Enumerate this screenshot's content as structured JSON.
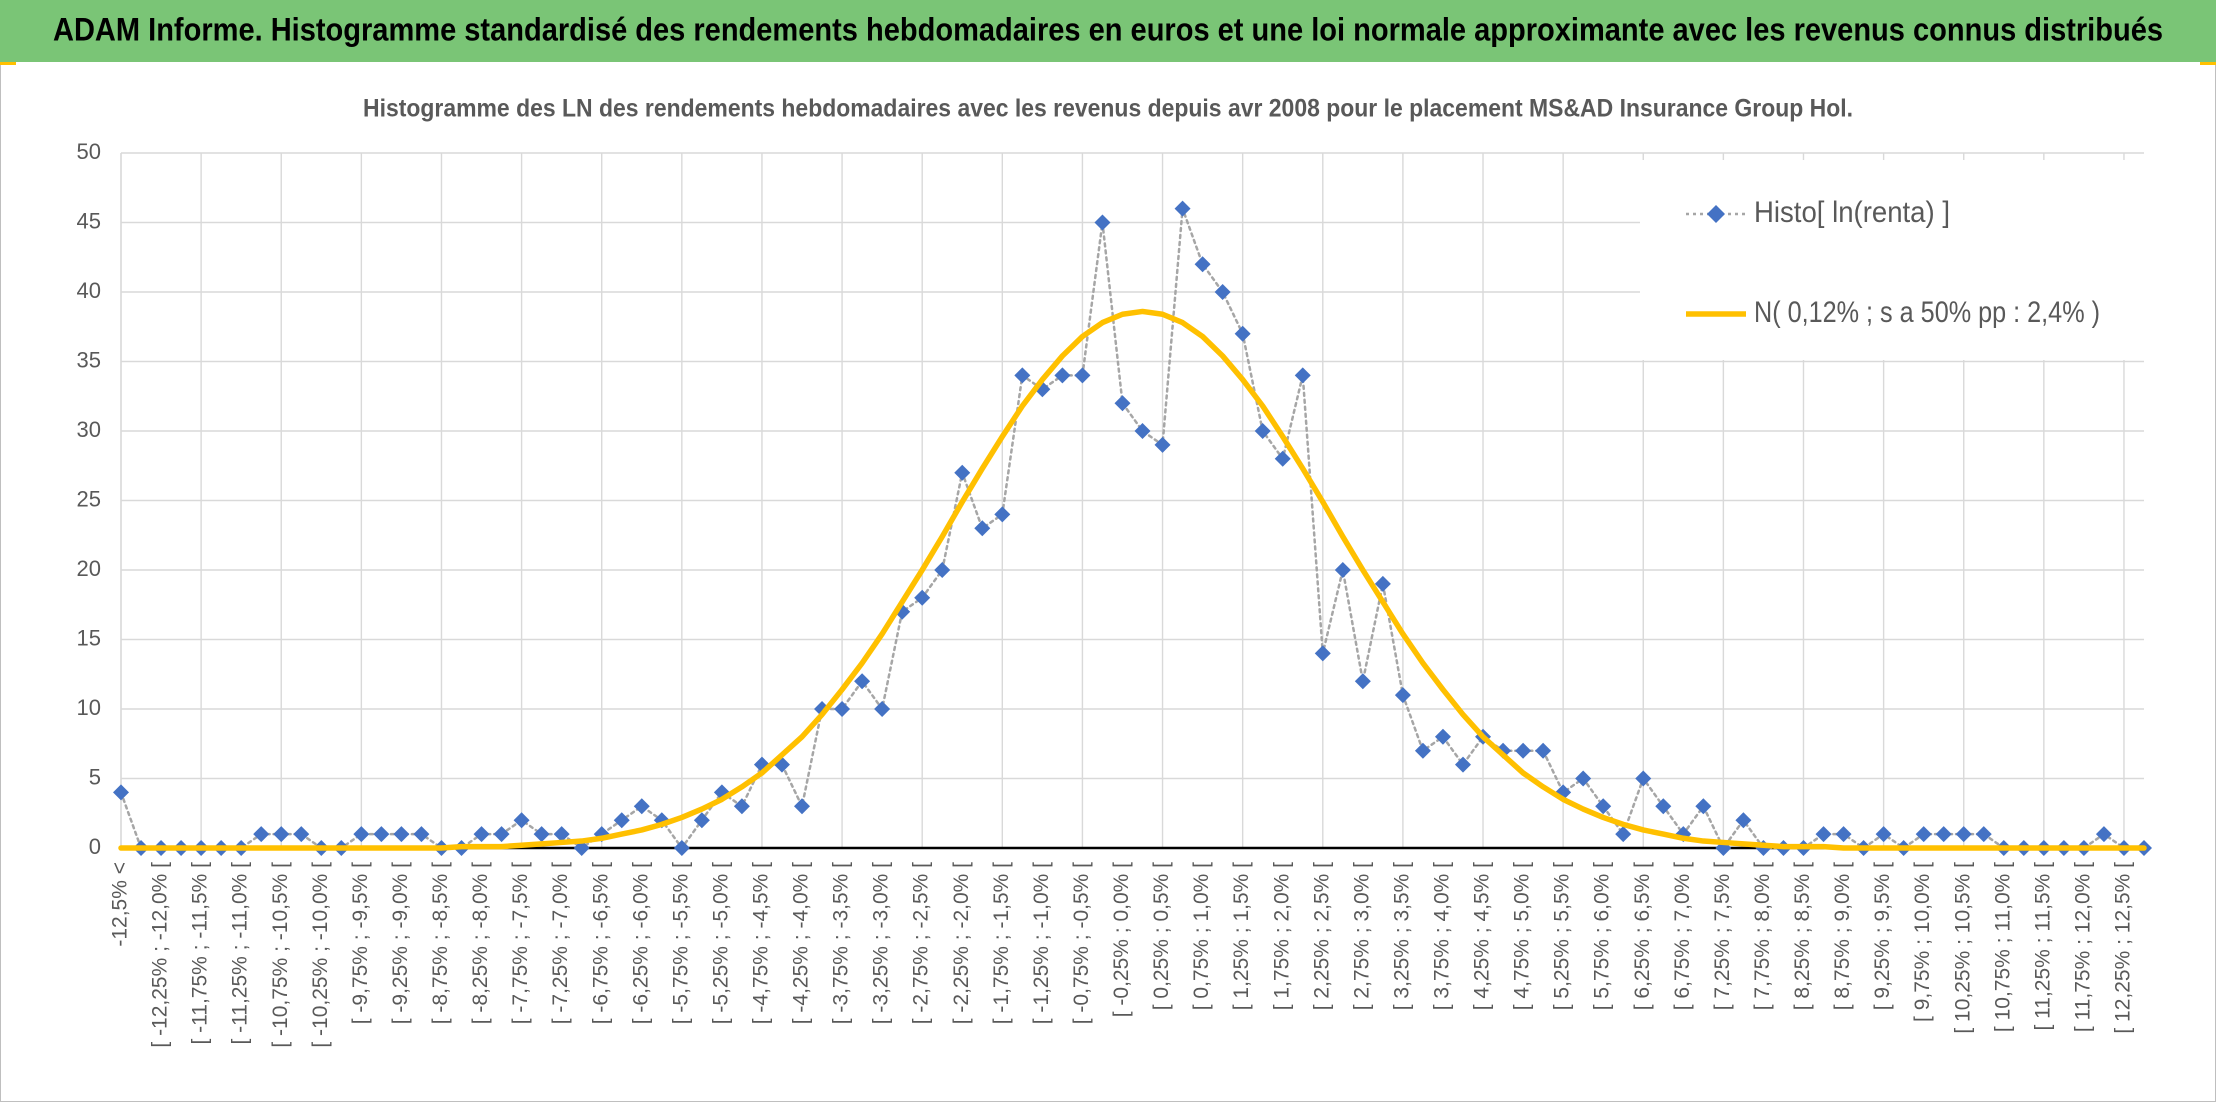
{
  "chart_data": {
    "type": "line",
    "super_title": "ADAM Informe. Histogramme standardisé des rendements hebdomadaires en euros et une loi normale approximante avec les revenus connus distribués",
    "title": "Histogramme des LN des rendements hebdomadaires avec les revenus depuis avr 2008 pour le placement MS&AD Insurance Group Hol.",
    "categories": [
      "-12,5% <",
      null,
      "[ -12,25% ; -12,0% [",
      null,
      "[ -11,75% ; -11,5% [",
      null,
      "[ -11,25% ; -11,0% [",
      null,
      "[ -10,75% ; -10,5% [",
      null,
      "[ -10,25% ; -10,0% [",
      null,
      "[ -9,75% ; -9,5% [",
      null,
      "[ -9,25% ; -9,0% [",
      null,
      "[ -8,75% ; -8,5% [",
      null,
      "[ -8,25% ; -8,0% [",
      null,
      "[ -7,75% ; -7,5% [",
      null,
      "[ -7,25% ; -7,0% [",
      null,
      "[ -6,75% ; -6,5% [",
      null,
      "[ -6,25% ; -6,0% [",
      null,
      "[ -5,75% ; -5,5% [",
      null,
      "[ -5,25% ; -5,0% [",
      null,
      "[ -4,75% ; -4,5% [",
      null,
      "[ -4,25% ; -4,0% [",
      null,
      "[ -3,75% ; -3,5% [",
      null,
      "[ -3,25% ; -3,0% [",
      null,
      "[ -2,75% ; -2,5% [",
      null,
      "[ -2,25% ; -2,0% [",
      null,
      "[ -1,75% ; -1,5% [",
      null,
      "[ -1,25% ; -1,0% [",
      null,
      "[ -0,75% ; -0,5% [",
      null,
      "[ -0,25% ; 0,0% [",
      null,
      "[ 0,25% ; 0,5% [",
      null,
      "[ 0,75% ; 1,0% [",
      null,
      "[ 1,25% ; 1,5% [",
      null,
      "[ 1,75% ; 2,0% [",
      null,
      "[ 2,25% ; 2,5% [",
      null,
      "[ 2,75% ; 3,0% [",
      null,
      "[ 3,25% ; 3,5% [",
      null,
      "[ 3,75% ; 4,0% [",
      null,
      "[ 4,25% ; 4,5% [",
      null,
      "[ 4,75% ; 5,0% [",
      null,
      "[ 5,25% ; 5,5% [",
      null,
      "[ 5,75% ; 6,0% [",
      null,
      "[ 6,25% ; 6,5% [",
      null,
      "[ 6,75% ; 7,0% [",
      null,
      "[ 7,25% ; 7,5% [",
      null,
      "[ 7,75% ; 8,0% [",
      null,
      "[ 8,25% ; 8,5% [",
      null,
      "[ 8,75% ; 9,0% [",
      null,
      "[ 9,25% ; 9,5% [",
      null,
      "[ 9,75% ; 10,0% [",
      null,
      "[ 10,25% ; 10,5% [",
      null,
      "[ 10,75% ; 11,0% [",
      null,
      "[ 11,25% ; 11,5% [",
      null,
      "[ 11,75% ; 12,0% [",
      null,
      "[ 12,25% ; 12,5% [",
      null
    ],
    "series": [
      {
        "name": "Histo[ ln(renta) ]",
        "color": "#4472c4",
        "line_color": "#a6a6a6",
        "marker": "diamond",
        "line_style": "dotted",
        "values": [
          4,
          0,
          0,
          0,
          0,
          0,
          0,
          1,
          1,
          1,
          0,
          0,
          1,
          1,
          1,
          1,
          0,
          0,
          1,
          1,
          2,
          1,
          1,
          0,
          1,
          2,
          3,
          2,
          0,
          2,
          4,
          3,
          6,
          6,
          3,
          10,
          10,
          12,
          10,
          17,
          18,
          20,
          27,
          23,
          24,
          34,
          33,
          34,
          34,
          45,
          32,
          30,
          29,
          46,
          42,
          40,
          37,
          30,
          28,
          34,
          14,
          20,
          12,
          19,
          11,
          7,
          8,
          6,
          8,
          7,
          7,
          7,
          4,
          5,
          3,
          1,
          5,
          3,
          1,
          3,
          0,
          2,
          0,
          0,
          0,
          1,
          1,
          0,
          1,
          0,
          1,
          1,
          1,
          1,
          0,
          0,
          0,
          0,
          0,
          1,
          0,
          0
        ]
      },
      {
        "name": "N( 0,12% ; s a 50% pp : 2,4% )",
        "color": "#ffc000",
        "line_style": "solid",
        "values": [
          0,
          0,
          0,
          0,
          0,
          0,
          0,
          0,
          0,
          0,
          0,
          0,
          0,
          0,
          0,
          0,
          0,
          0.1,
          0.1,
          0.1,
          0.2,
          0.3,
          0.4,
          0.5,
          0.7,
          1.0,
          1.3,
          1.7,
          2.2,
          2.8,
          3.5,
          4.4,
          5.4,
          6.7,
          8.0,
          9.6,
          11.4,
          13.3,
          15.4,
          17.7,
          20.0,
          22.4,
          24.9,
          27.3,
          29.6,
          31.8,
          33.7,
          35.4,
          36.8,
          37.8,
          38.4,
          38.6,
          38.4,
          37.8,
          36.8,
          35.4,
          33.7,
          31.8,
          29.6,
          27.3,
          24.9,
          22.4,
          20.0,
          17.7,
          15.4,
          13.3,
          11.4,
          9.6,
          8.0,
          6.7,
          5.4,
          4.4,
          3.5,
          2.8,
          2.2,
          1.7,
          1.3,
          1.0,
          0.7,
          0.5,
          0.4,
          0.3,
          0.2,
          0.1,
          0.1,
          0.1,
          0,
          0,
          0,
          0,
          0,
          0,
          0,
          0,
          0,
          0,
          0,
          0,
          0,
          0,
          0,
          0
        ]
      }
    ],
    "ylim": [
      0,
      50
    ],
    "yticks": [
      0,
      5,
      10,
      15,
      20,
      25,
      30,
      35,
      40,
      45,
      50
    ],
    "grid": true,
    "legend": "top-right"
  }
}
